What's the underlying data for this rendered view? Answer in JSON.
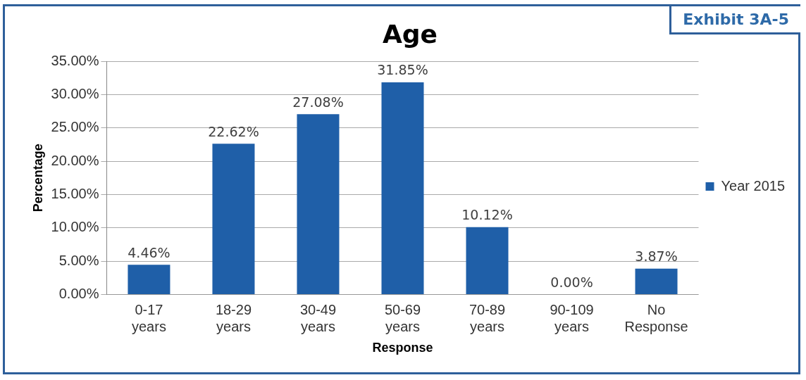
{
  "chart_data": {
    "type": "bar",
    "title": "Age",
    "xlabel": "Response",
    "ylabel": "Percentage",
    "annotations": [
      "Exhibit 3A-5"
    ],
    "categories": [
      "0-17 years",
      "18-29 years",
      "30-49 years",
      "50-69 years",
      "70-89 years",
      "90-109 years",
      "No Response"
    ],
    "series": [
      {
        "name": "Year 2015",
        "color": "#1f5fa8",
        "values": [
          4.46,
          22.62,
          27.08,
          31.85,
          10.12,
          0.0,
          3.87
        ],
        "value_labels": [
          "4.46%",
          "22.62%",
          "27.08%",
          "31.85%",
          "10.12%",
          "0.00%",
          "3.87%"
        ]
      }
    ],
    "ylim": [
      0,
      35
    ],
    "yticks": [
      {
        "value": 0,
        "label": "0.00%"
      },
      {
        "value": 5,
        "label": "5.00%"
      },
      {
        "value": 10,
        "label": "10.00%"
      },
      {
        "value": 15,
        "label": "15.00%"
      },
      {
        "value": 20,
        "label": "20.00%"
      },
      {
        "value": 25,
        "label": "25.00%"
      },
      {
        "value": 30,
        "label": "30.00%"
      },
      {
        "value": 35,
        "label": "35.00%"
      }
    ],
    "grid": "y",
    "legend": "right"
  }
}
